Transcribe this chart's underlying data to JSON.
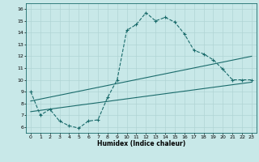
{
  "xlabel": "Humidex (Indice chaleur)",
  "bg_color": "#c8e8e8",
  "grid_color": "#b0d4d4",
  "line_color": "#1a6b6b",
  "xlim": [
    -0.5,
    23.5
  ],
  "ylim": [
    5.5,
    16.5
  ],
  "yticks": [
    6,
    7,
    8,
    9,
    10,
    11,
    12,
    13,
    14,
    15,
    16
  ],
  "xticks": [
    0,
    1,
    2,
    3,
    4,
    5,
    6,
    7,
    8,
    9,
    10,
    11,
    12,
    13,
    14,
    15,
    16,
    17,
    18,
    19,
    20,
    21,
    22,
    23
  ],
  "line1_x": [
    0,
    1,
    2,
    3,
    4,
    5,
    6,
    7,
    8,
    9,
    10,
    11,
    12,
    13,
    14,
    15,
    16,
    17,
    18,
    19,
    20,
    21,
    22,
    23
  ],
  "line1_y": [
    9,
    7,
    7.5,
    6.5,
    6.1,
    5.9,
    6.5,
    6.6,
    8.5,
    10.0,
    14.2,
    14.7,
    15.7,
    15.0,
    15.3,
    14.9,
    13.9,
    12.5,
    12.2,
    11.7,
    10.9,
    10.0,
    10.0,
    10.0
  ],
  "line2_x": [
    0,
    23
  ],
  "line2_y": [
    7.3,
    9.8
  ],
  "line3_x": [
    0,
    23
  ],
  "line3_y": [
    8.2,
    12.0
  ]
}
